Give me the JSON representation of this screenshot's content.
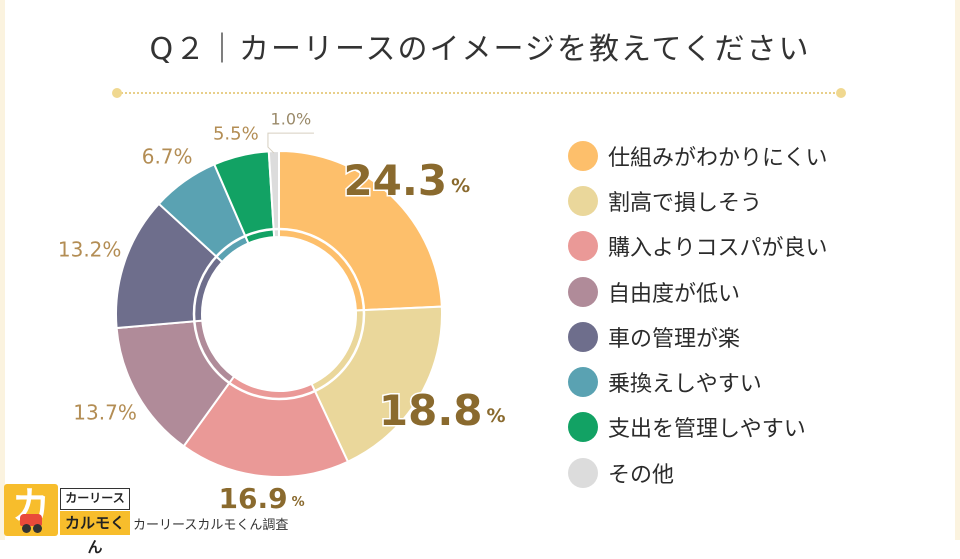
{
  "title": "Q２｜カーリースのイメージを教えてください",
  "chart_data": {
    "type": "pie",
    "variant": "donut",
    "title": "Q２｜カーリースのイメージを教えてください",
    "categories": [
      "仕組みがわかりにくい",
      "割高で損しそう",
      "購入よりコスパが良い",
      "自由度が低い",
      "車の管理が楽",
      "乗換えしやすい",
      "支出を管理しやすい",
      "その他"
    ],
    "values": [
      24.3,
      18.8,
      16.9,
      13.7,
      13.2,
      6.7,
      5.5,
      1.0
    ],
    "value_labels": [
      "24.3",
      "18.8",
      "16.9",
      "13.7%",
      "13.2%",
      "6.7%",
      "5.5%",
      "1.0%"
    ],
    "unit_label": "%",
    "colors": [
      "#fdbf6b",
      "#ead79b",
      "#ea9997",
      "#b08b99",
      "#6e6e8c",
      "#5aa2b2",
      "#12a264",
      "#dcdcdc"
    ],
    "legend_position": "right"
  },
  "footer": {
    "logo_top_text": "カーリース",
    "logo_bottom_text": "カルモくん",
    "logo_mark": "カ",
    "source_text": "カーリースカルモくん調査"
  }
}
